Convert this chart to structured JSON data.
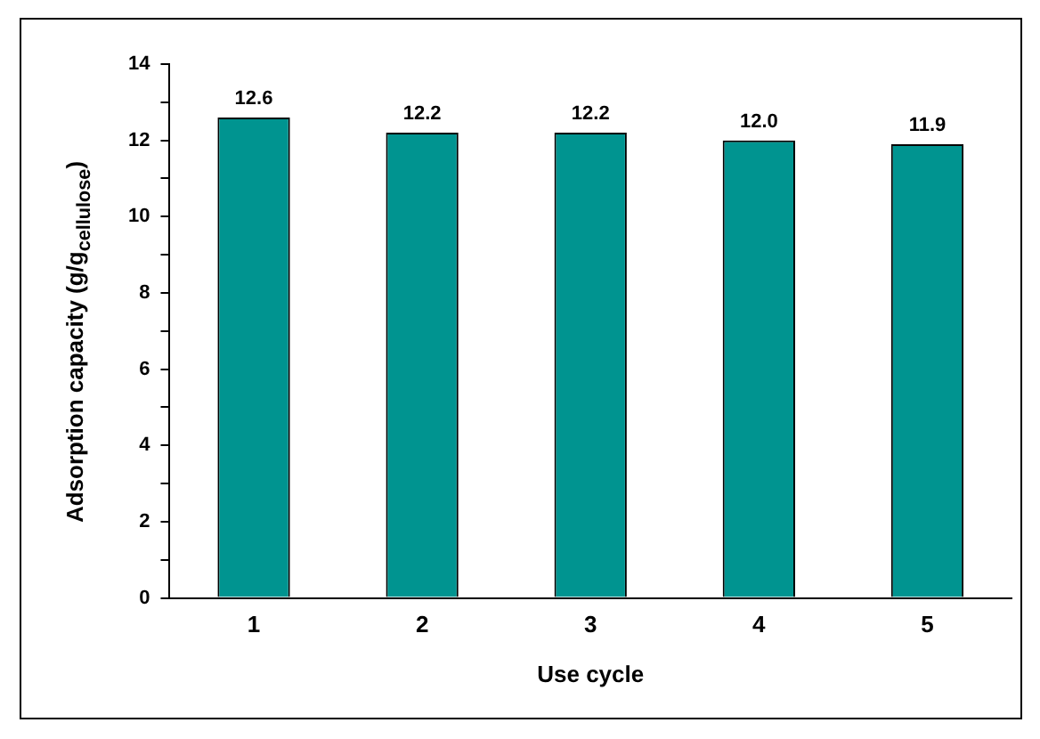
{
  "chart_data": {
    "type": "bar",
    "xlabel": "Use cycle",
    "ylabel": "Adsorption capacity (g/g$_{cellulose}$)",
    "categories": [
      "1",
      "2",
      "3",
      "4",
      "5"
    ],
    "values": [
      12.6,
      12.2,
      12.2,
      12.0,
      11.9
    ],
    "value_labels": [
      "12.6",
      "12.2",
      "12.2",
      "12.0",
      "11.9"
    ],
    "color": "#009490",
    "ylim": [
      0,
      14
    ],
    "yticks": [
      0,
      {
        "value": 1,
        "label": null
      },
      2,
      {
        "value": 3,
        "label": null
      },
      4,
      {
        "value": 5,
        "label": null
      },
      6,
      {
        "value": 7,
        "label": null
      },
      8,
      {
        "value": 9,
        "label": null
      },
      10,
      {
        "value": 11,
        "label": null
      },
      12,
      {
        "value": 13,
        "label": null
      },
      14
    ],
    "grid": false,
    "legend": false
  }
}
